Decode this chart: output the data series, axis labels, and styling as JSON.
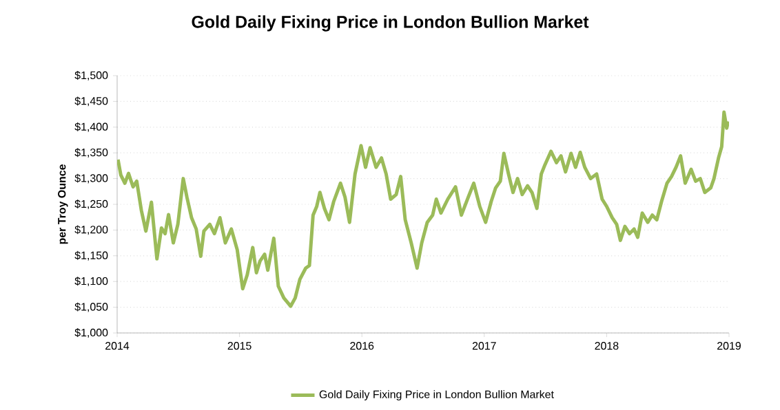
{
  "chart_data": {
    "type": "line",
    "title": "Gold Daily Fixing Price in London Bullion Market",
    "ylabel": "per Troy Ounce",
    "xlim": [
      2014,
      2019
    ],
    "xticks": [
      2014,
      2015,
      2016,
      2017,
      2018,
      2019
    ],
    "ylim": [
      1000,
      1500
    ],
    "yticks": [
      {
        "value": 1000,
        "label": "$1,000"
      },
      {
        "value": 1050,
        "label": "$1,050"
      },
      {
        "value": 1100,
        "label": "$1,100"
      },
      {
        "value": 1150,
        "label": "$1,150"
      },
      {
        "value": 1200,
        "label": "$1,200"
      },
      {
        "value": 1250,
        "label": "$1,250"
      },
      {
        "value": 1300,
        "label": "$1,300"
      },
      {
        "value": 1350,
        "label": "$1,350"
      },
      {
        "value": 1400,
        "label": "$1,400"
      },
      {
        "value": 1450,
        "label": "$1,450"
      },
      {
        "value": 1500,
        "label": "$1,500"
      }
    ],
    "grid": "y",
    "legend": "bottom",
    "marker": "none",
    "line_style": "solid",
    "series": [
      {
        "name": "Gold Daily Fixing Price in London Bullion Market",
        "color": "#9bbb59",
        "x": [
          2014.007,
          2014.03,
          2014.063,
          2014.093,
          2014.13,
          2014.16,
          2014.198,
          2014.235,
          2014.28,
          2014.325,
          2014.362,
          2014.392,
          2014.42,
          2014.459,
          2014.496,
          2014.54,
          2014.57,
          2014.608,
          2014.646,
          2014.683,
          2014.709,
          2014.757,
          2014.795,
          2014.84,
          2014.884,
          2014.933,
          2014.981,
          2015.026,
          2015.063,
          2015.108,
          2015.138,
          2015.168,
          2015.205,
          2015.231,
          2015.28,
          2015.317,
          2015.362,
          2015.418,
          2015.455,
          2015.493,
          2015.541,
          2015.571,
          2015.601,
          2015.631,
          2015.657,
          2015.694,
          2015.731,
          2015.769,
          2015.825,
          2015.862,
          2015.899,
          2015.944,
          2015.993,
          2016.03,
          2016.067,
          2016.116,
          2016.16,
          2016.198,
          2016.235,
          2016.28,
          2016.317,
          2016.354,
          2016.403,
          2016.451,
          2016.489,
          2016.534,
          2016.578,
          2016.608,
          2016.646,
          2016.702,
          2016.765,
          2016.813,
          2016.869,
          2016.914,
          2016.963,
          2017.011,
          2017.056,
          2017.093,
          2017.131,
          2017.16,
          2017.198,
          2017.235,
          2017.272,
          2017.31,
          2017.354,
          2017.39,
          2017.43,
          2017.466,
          2017.496,
          2017.545,
          2017.59,
          2017.627,
          2017.664,
          2017.709,
          2017.746,
          2017.784,
          2017.821,
          2017.869,
          2017.918,
          2017.963,
          2018.0,
          2018.045,
          2018.082,
          2018.112,
          2018.149,
          2018.187,
          2018.224,
          2018.254,
          2018.291,
          2018.336,
          2018.373,
          2018.41,
          2018.448,
          2018.493,
          2018.53,
          2018.567,
          2018.604,
          2018.642,
          2018.69,
          2018.727,
          2018.765,
          2018.802,
          2018.851,
          2018.877,
          2018.914,
          2018.94,
          2018.959,
          2018.981,
          2018.993
        ],
        "values": [
          1337,
          1307,
          1291,
          1310,
          1284,
          1295,
          1238,
          1198,
          1254,
          1144,
          1204,
          1193,
          1230,
          1175,
          1211,
          1300,
          1264,
          1224,
          1202,
          1149,
          1198,
          1211,
          1193,
          1224,
          1175,
          1202,
          1162,
          1086,
          1113,
          1166,
          1117,
          1140,
          1153,
          1122,
          1184,
          1091,
          1068,
          1052,
          1068,
          1104,
          1126,
          1131,
          1229,
          1246,
          1273,
          1242,
          1220,
          1255,
          1291,
          1264,
          1215,
          1309,
          1364,
          1322,
          1360,
          1322,
          1340,
          1309,
          1260,
          1269,
          1304,
          1220,
          1175,
          1126,
          1175,
          1215,
          1229,
          1260,
          1233,
          1260,
          1284,
          1229,
          1264,
          1291,
          1246,
          1215,
          1255,
          1282,
          1295,
          1349,
          1309,
          1273,
          1300,
          1269,
          1286,
          1273,
          1242,
          1309,
          1327,
          1353,
          1331,
          1344,
          1313,
          1349,
          1322,
          1351,
          1322,
          1300,
          1309,
          1260,
          1246,
          1224,
          1211,
          1180,
          1207,
          1193,
          1202,
          1186,
          1233,
          1215,
          1229,
          1220,
          1255,
          1291,
          1304,
          1322,
          1344,
          1291,
          1318,
          1295,
          1300,
          1273,
          1282,
          1300,
          1340,
          1362,
          1429,
          1398,
          1411
        ]
      }
    ]
  }
}
